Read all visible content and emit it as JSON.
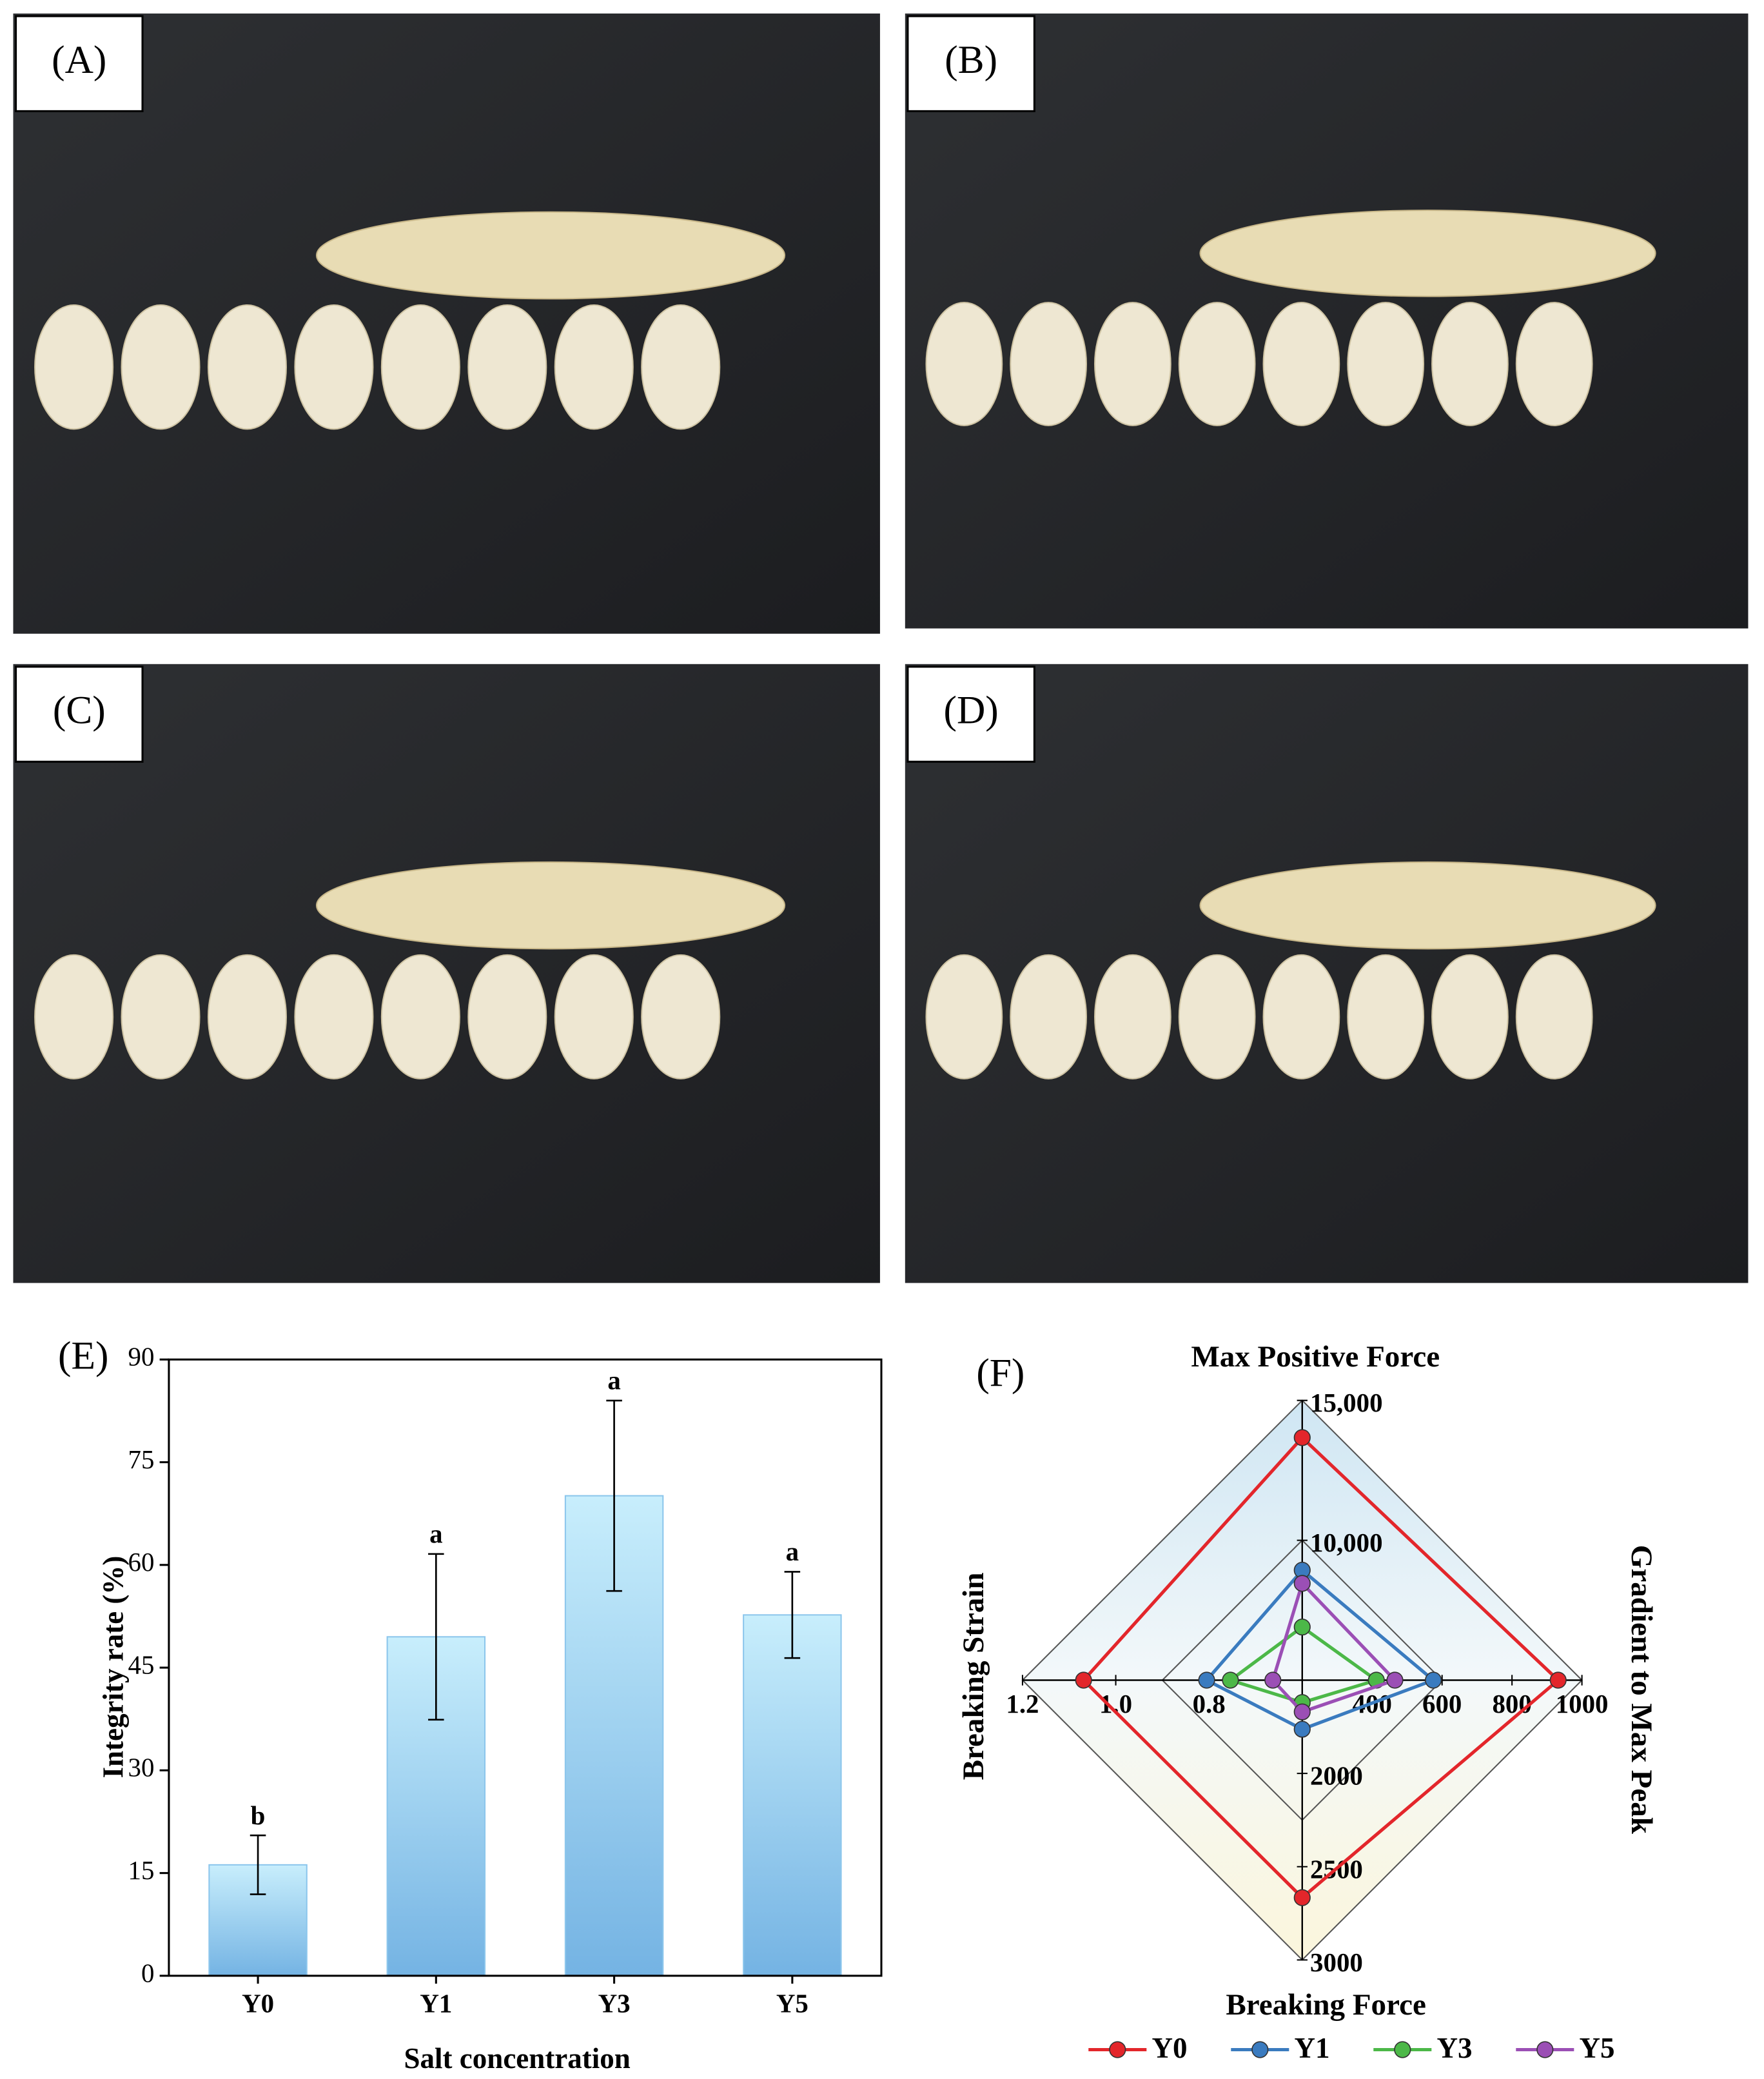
{
  "panels": [
    {
      "label": "(A)"
    },
    {
      "label": "(B)"
    },
    {
      "label": "(C)"
    },
    {
      "label": "(D)"
    }
  ],
  "chart_data": [
    {
      "type": "bar",
      "panel_label": "(E)",
      "x_label": "Salt concentration",
      "y_label": "Integrity rate (%)",
      "categories": [
        "Y0",
        "Y1",
        "Y3",
        "Y5"
      ],
      "values": [
        16.2,
        49.5,
        70.1,
        52.7
      ],
      "errors": [
        4.3,
        12.1,
        13.9,
        6.3
      ],
      "annotations": [
        "b",
        "a",
        "a",
        "a"
      ],
      "color": "#8cc6ec",
      "ylim": [
        0,
        90
      ],
      "yticks": [
        0,
        15,
        30,
        45,
        60,
        75,
        90
      ]
    },
    {
      "type": "radar",
      "panel_label": "(F)",
      "axes": [
        {
          "name": "Max Positive Force",
          "lim": [
            5000,
            15000
          ],
          "ticks": [
            {
              "value": 10000,
              "label": "10,000"
            },
            {
              "value": 15000,
              "label": "15,000"
            }
          ]
        },
        {
          "name": "Gradient to Max Peak",
          "lim": [
            200,
            1000
          ],
          "ticks": [
            400,
            600,
            800,
            1000
          ]
        },
        {
          "name": "Breaking Force",
          "lim": [
            1500,
            3000
          ],
          "ticks": [
            2000,
            2500,
            3000
          ]
        },
        {
          "name": "Breaking Strain",
          "lim": [
            0.6,
            1.2
          ],
          "ticks": [
            0.8,
            {
              "value": 1,
              "label": "1.0"
            },
            1.2
          ]
        }
      ],
      "series": [
        {
          "name": "Y0",
          "color": "#e3262b",
          "values": [
            13670,
            932,
            2666,
            1.069
          ]
        },
        {
          "name": "Y1",
          "color": "#3a7bbf",
          "values": [
            8930,
            575,
            1763,
            0.805
          ]
        },
        {
          "name": "Y3",
          "color": "#4cb848",
          "values": [
            6900,
            412,
            1620,
            0.754
          ]
        },
        {
          "name": "Y5",
          "color": "#9b4fb5",
          "values": [
            8460,
            465,
            1670,
            0.663
          ]
        }
      ]
    }
  ]
}
